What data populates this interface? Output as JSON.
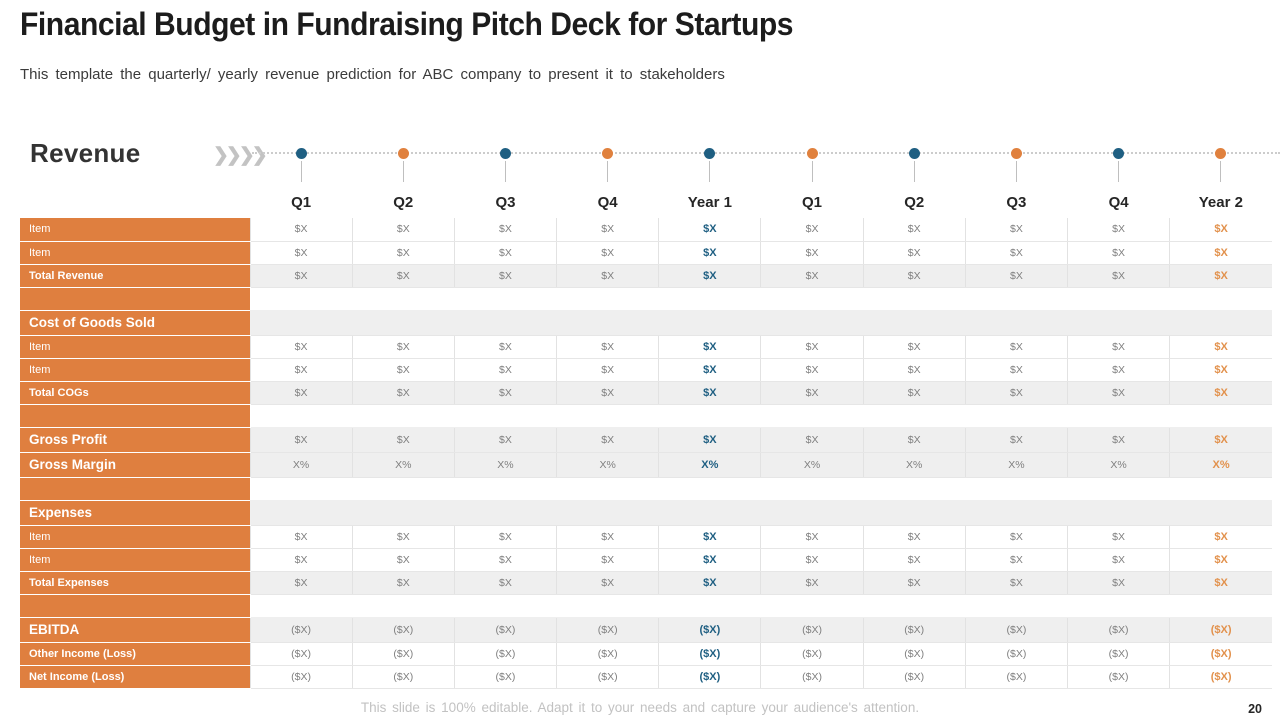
{
  "slide": {
    "title": "Financial Budget in Fundraising Pitch Deck for Startups",
    "subtitle": "This template the quarterly/ yearly revenue prediction for ABC company to present it to stakeholders",
    "section_heading": "Revenue",
    "footer_note": "This slide is 100% editable. Adapt it to your needs and capture your audience's attention.",
    "page_number": "20"
  },
  "colors": {
    "label_orange": "#df7f3f",
    "dot_blue": "#1f5f82",
    "dot_orange": "#e0813e",
    "year1_text": "#1f5f82",
    "year2_text": "#e2914c",
    "band_gray": "#efefef",
    "value_gray": "#7f7f7f"
  },
  "timeline": {
    "chevrons": "❯❯❯❯",
    "dot_colors": [
      "blue",
      "orange",
      "blue",
      "orange",
      "blue",
      "orange",
      "blue",
      "orange",
      "blue",
      "orange"
    ]
  },
  "table": {
    "columns": [
      "Q1",
      "Q2",
      "Q3",
      "Q4",
      "Year 1",
      "Q1",
      "Q2",
      "Q3",
      "Q4",
      "Year 2"
    ],
    "rows": [
      {
        "label": "Item",
        "style": "item",
        "values": [
          "$X",
          "$X",
          "$X",
          "$X",
          "$X",
          "$X",
          "$X",
          "$X",
          "$X",
          "$X"
        ]
      },
      {
        "label": "Item",
        "style": "item",
        "values": [
          "$X",
          "$X",
          "$X",
          "$X",
          "$X",
          "$X",
          "$X",
          "$X",
          "$X",
          "$X"
        ]
      },
      {
        "label": "Total Revenue",
        "style": "total",
        "values": [
          "$X",
          "$X",
          "$X",
          "$X",
          "$X",
          "$X",
          "$X",
          "$X",
          "$X",
          "$X"
        ]
      },
      {
        "label": "",
        "style": "spacer",
        "values": null
      },
      {
        "label": "Cost of Goods Sold",
        "style": "section",
        "values": null
      },
      {
        "label": "Item",
        "style": "item",
        "values": [
          "$X",
          "$X",
          "$X",
          "$X",
          "$X",
          "$X",
          "$X",
          "$X",
          "$X",
          "$X"
        ]
      },
      {
        "label": "Item",
        "style": "item",
        "values": [
          "$X",
          "$X",
          "$X",
          "$X",
          "$X",
          "$X",
          "$X",
          "$X",
          "$X",
          "$X"
        ]
      },
      {
        "label": "Total COGs",
        "style": "total",
        "values": [
          "$X",
          "$X",
          "$X",
          "$X",
          "$X",
          "$X",
          "$X",
          "$X",
          "$X",
          "$X"
        ]
      },
      {
        "label": "",
        "style": "spacer",
        "values": null
      },
      {
        "label": "Gross Profit",
        "style": "big",
        "values": [
          "$X",
          "$X",
          "$X",
          "$X",
          "$X",
          "$X",
          "$X",
          "$X",
          "$X",
          "$X"
        ]
      },
      {
        "label": "Gross Margin",
        "style": "big",
        "values": [
          "X%",
          "X%",
          "X%",
          "X%",
          "X%",
          "X%",
          "X%",
          "X%",
          "X%",
          "X%"
        ]
      },
      {
        "label": "",
        "style": "spacer",
        "values": null
      },
      {
        "label": "Expenses",
        "style": "section",
        "values": null
      },
      {
        "label": "Item",
        "style": "item",
        "values": [
          "$X",
          "$X",
          "$X",
          "$X",
          "$X",
          "$X",
          "$X",
          "$X",
          "$X",
          "$X"
        ]
      },
      {
        "label": "Item",
        "style": "item",
        "values": [
          "$X",
          "$X",
          "$X",
          "$X",
          "$X",
          "$X",
          "$X",
          "$X",
          "$X",
          "$X"
        ]
      },
      {
        "label": "Total Expenses",
        "style": "total",
        "values": [
          "$X",
          "$X",
          "$X",
          "$X",
          "$X",
          "$X",
          "$X",
          "$X",
          "$X",
          "$X"
        ]
      },
      {
        "label": "",
        "style": "spacer",
        "values": null
      },
      {
        "label": "EBITDA",
        "style": "big",
        "values": [
          "($X)",
          "($X)",
          "($X)",
          "($X)",
          "($X)",
          "($X)",
          "($X)",
          "($X)",
          "($X)",
          "($X)"
        ]
      },
      {
        "label": "Other Income (Loss)",
        "style": "loss",
        "values": [
          "($X)",
          "($X)",
          "($X)",
          "($X)",
          "($X)",
          "($X)",
          "($X)",
          "($X)",
          "($X)",
          "($X)"
        ]
      },
      {
        "label": "Net Income (Loss)",
        "style": "loss",
        "values": [
          "($X)",
          "($X)",
          "($X)",
          "($X)",
          "($X)",
          "($X)",
          "($X)",
          "($X)",
          "($X)",
          "($X)"
        ]
      }
    ]
  }
}
